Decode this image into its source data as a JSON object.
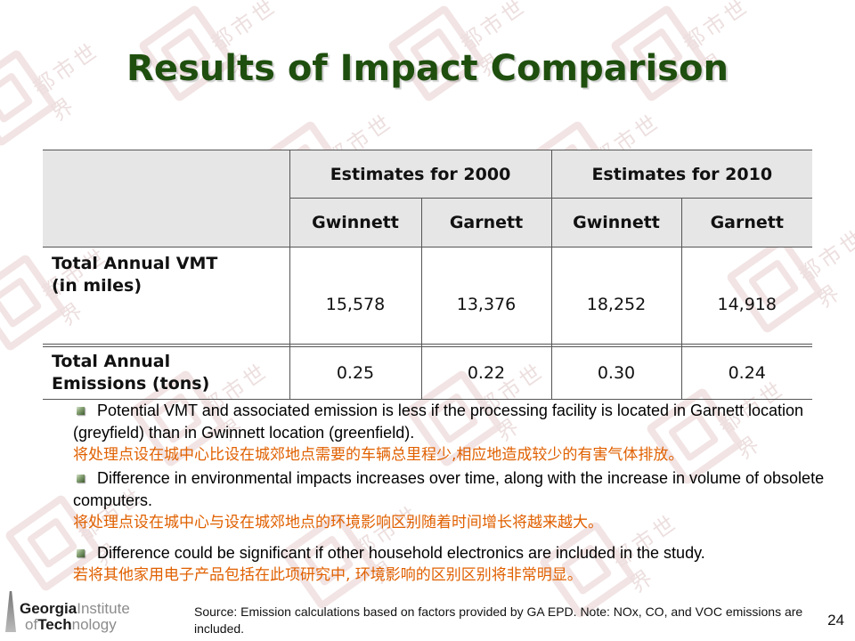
{
  "slide": {
    "title": "Results of Impact Comparison",
    "page_number": "24"
  },
  "table": {
    "group_headers": [
      "Estimates for 2000",
      "Estimates for 2010"
    ],
    "sub_headers": [
      "Gwinnett",
      "Garnett",
      "Gwinnett",
      "Garnett"
    ],
    "rows": [
      {
        "label_line1": "Total Annual VMT",
        "label_line2": "(in miles)",
        "values": [
          "15,578",
          "13,376",
          "18,252",
          "14,918"
        ]
      },
      {
        "label_line1": "Total Annual",
        "label_line2": "Emissions (tons)",
        "values": [
          "0.25",
          "0.22",
          "0.30",
          "0.24"
        ]
      }
    ]
  },
  "bullets": [
    {
      "en": "Potential VMT and associated emission is less if the processing facility is located in Garnett location (greyfield) than in Gwinnett location (greenfield).",
      "cn": "将处理点设在城中心比设在城郊地点需要的车辆总里程少,相应地造成较少的有害气体排放。"
    },
    {
      "en": "Difference in environmental impacts increases over time, along with the increase in volume of obsolete computers.",
      "cn": "将处理点设在城中心与设在城郊地点的环境影响区别随着时间增长将越来越大。"
    },
    {
      "en": "Difference could be significant if other household electronics are included in the study.",
      "cn": "若将其他家用电子产品包括在此项研究中, 环境影响的区别区别将非常明显。"
    }
  ],
  "footer": {
    "logo_line1_bold": "Georgia",
    "logo_line1_light": "Institute",
    "logo_line2_light_a": "of",
    "logo_line2_bold": "Tech",
    "logo_line2_light_b": "nology",
    "source": "Source:  Emission calculations based on factors provided by GA EPD. Note:  NOx, CO, and VOC emissions are included."
  },
  "watermark": {
    "text": "都市世界",
    "color": "#c98a8a"
  },
  "colors": {
    "title": "#1f4f0e",
    "chinese_text": "#e06000",
    "header_shade": "#e6e6e6"
  }
}
